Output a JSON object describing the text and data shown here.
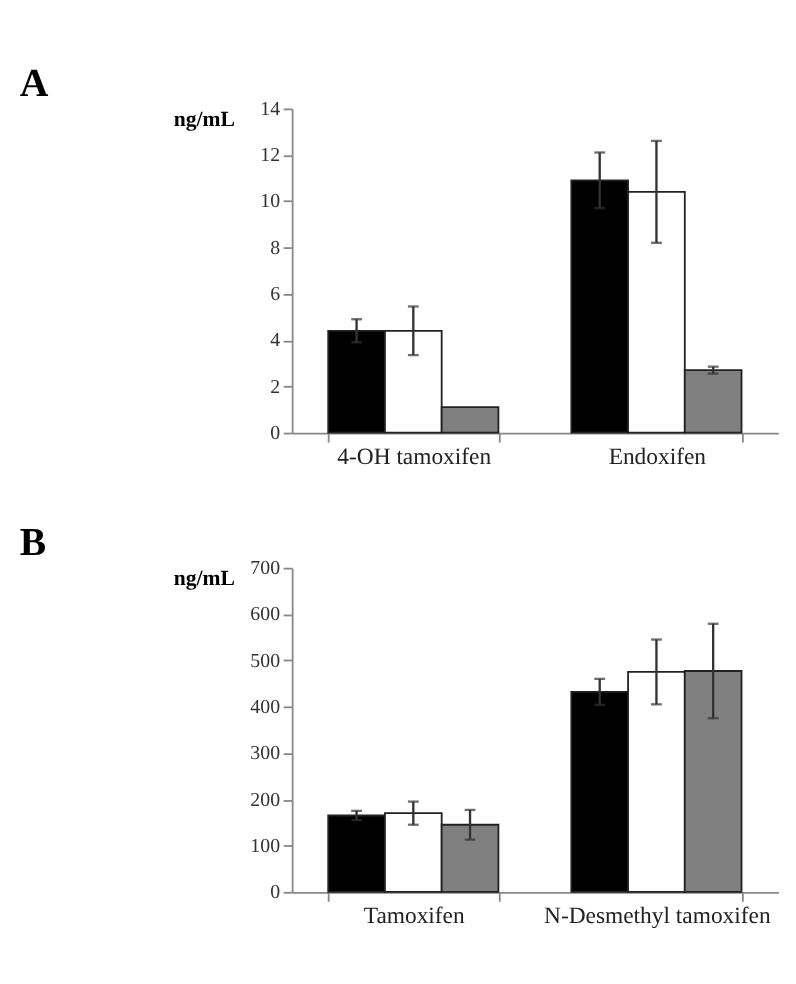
{
  "chart_data": [
    {
      "type": "bar",
      "title": "A",
      "ylabel": "ng/mL",
      "categories": [
        "4-OH tamoxifen",
        "Endoxifen"
      ],
      "series": [
        {
          "color": "#000000",
          "values": [
            4.4,
            10.9
          ],
          "errors": [
            0.5,
            1.2
          ]
        },
        {
          "color": "#ffffff",
          "values": [
            4.4,
            10.4
          ],
          "errors": [
            1.05,
            2.2
          ]
        },
        {
          "color": "#808080",
          "values": [
            1.1,
            2.7
          ],
          "errors": [
            null,
            0.15
          ]
        }
      ],
      "ylim": [
        0,
        14
      ],
      "yticks": [
        0,
        2,
        4,
        6,
        8,
        10,
        12,
        14
      ],
      "grid": false,
      "legend": false
    },
    {
      "type": "bar",
      "title": "B",
      "ylabel": "ng/mL",
      "categories": [
        "Tamoxifen",
        "N-Desmethyl tamoxifen"
      ],
      "series": [
        {
          "color": "#000000",
          "values": [
            165,
            432
          ],
          "errors": [
            10,
            28
          ]
        },
        {
          "color": "#ffffff",
          "values": [
            170,
            475
          ],
          "errors": [
            25,
            70
          ]
        },
        {
          "color": "#808080",
          "values": [
            145,
            477
          ],
          "errors": [
            32,
            102
          ]
        }
      ],
      "ylim": [
        0,
        700
      ],
      "yticks": [
        0,
        100,
        200,
        300,
        400,
        500,
        600,
        700
      ],
      "grid": false,
      "legend": false
    }
  ]
}
